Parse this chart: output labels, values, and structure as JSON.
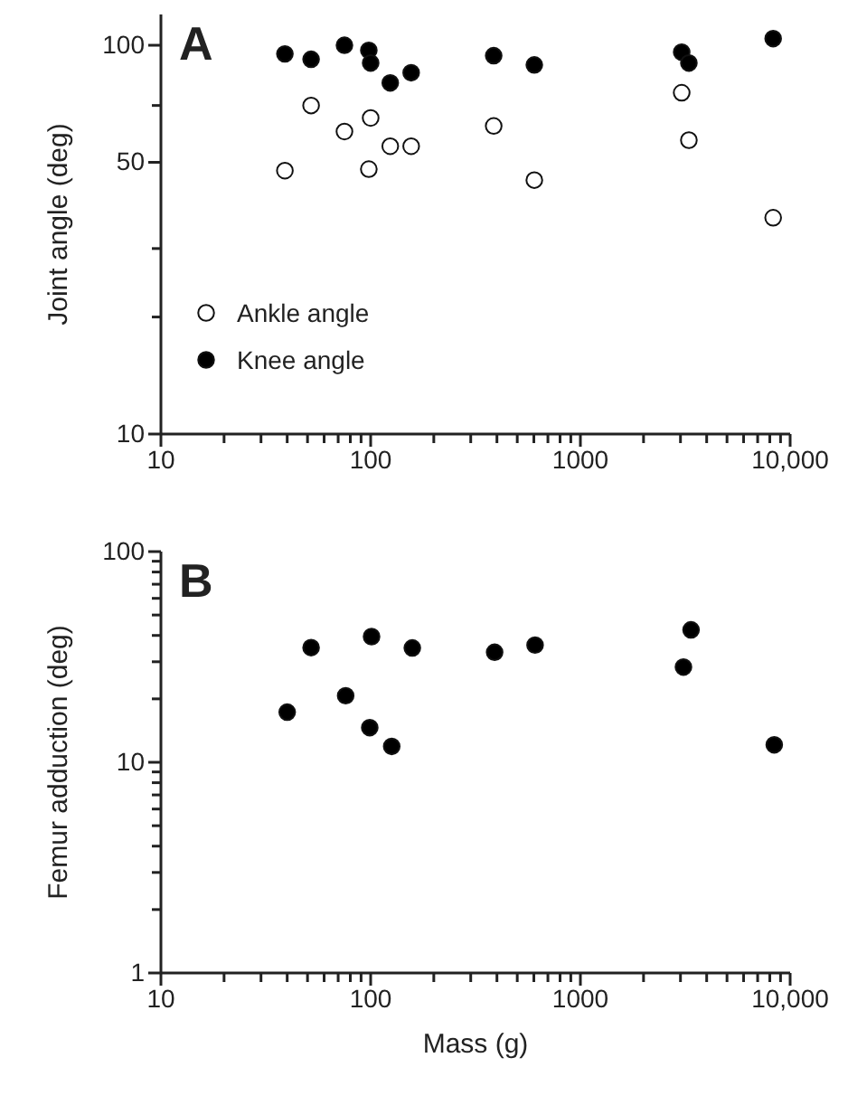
{
  "chart_data": [
    {
      "type": "scatter",
      "title": "A",
      "ylabel": "Joint angle (deg)",
      "log": "xy",
      "marker": "circle",
      "legend": "left",
      "grid": false,
      "xlim": [
        10,
        10000
      ],
      "xticks": [
        10,
        {
          "value": 20,
          "label": null
        },
        {
          "value": 30,
          "label": null
        },
        {
          "value": 40,
          "label": null
        },
        {
          "value": 50,
          "label": null
        },
        {
          "value": 60,
          "label": null
        },
        {
          "value": 70,
          "label": null
        },
        {
          "value": 80,
          "label": null
        },
        {
          "value": 90,
          "label": null
        },
        100,
        {
          "value": 200,
          "label": null
        },
        {
          "value": 300,
          "label": null
        },
        {
          "value": 400,
          "label": null
        },
        {
          "value": 500,
          "label": null
        },
        {
          "value": 600,
          "label": null
        },
        {
          "value": 700,
          "label": null
        },
        {
          "value": 800,
          "label": null
        },
        {
          "value": 900,
          "label": null
        },
        1000,
        {
          "value": 2000,
          "label": null
        },
        {
          "value": 3000,
          "label": null
        },
        {
          "value": 4000,
          "label": null
        },
        {
          "value": 5000,
          "label": null
        },
        {
          "value": 6000,
          "label": null
        },
        {
          "value": 7000,
          "label": null
        },
        {
          "value": 8000,
          "label": null
        },
        {
          "value": 9000,
          "label": null
        },
        {
          "value": 10000,
          "label": "10,000"
        }
      ],
      "ylim": [
        10,
        120
      ],
      "yticks": [
        10,
        {
          "value": 20,
          "label": null
        },
        {
          "value": 30,
          "label": null
        },
        50,
        {
          "value": 70,
          "label": null
        },
        100
      ],
      "series": [
        {
          "name": "Ankle angle",
          "color": "#ffffff",
          "x": [
            39,
            52,
            75,
            100,
            98,
            124,
            156,
            386,
            603,
            3040,
            3290,
            8300
          ],
          "values": [
            47.6,
            70,
            60,
            65,
            48,
            55,
            55,
            62,
            45,
            75.5,
            57,
            36
          ]
        },
        {
          "name": "Knee angle",
          "color": "#000000",
          "x": [
            39,
            52,
            75,
            98,
            100,
            124,
            156,
            386,
            603,
            3040,
            3290,
            8300
          ],
          "values": [
            95,
            92,
            100,
            97,
            90,
            80,
            85,
            94,
            89,
            96,
            90,
            104
          ]
        }
      ]
    },
    {
      "type": "scatter",
      "title": "B",
      "xlabel": "Mass (g)",
      "ylabel": "Femur adduction (deg)",
      "log": "xy",
      "marker": "circle",
      "legend": false,
      "grid": false,
      "xlim": [
        10,
        10000
      ],
      "xticks": [
        10,
        {
          "value": 20,
          "label": null
        },
        {
          "value": 30,
          "label": null
        },
        {
          "value": 40,
          "label": null
        },
        {
          "value": 50,
          "label": null
        },
        {
          "value": 60,
          "label": null
        },
        {
          "value": 70,
          "label": null
        },
        {
          "value": 80,
          "label": null
        },
        {
          "value": 90,
          "label": null
        },
        100,
        {
          "value": 200,
          "label": null
        },
        {
          "value": 300,
          "label": null
        },
        {
          "value": 400,
          "label": null
        },
        {
          "value": 500,
          "label": null
        },
        {
          "value": 600,
          "label": null
        },
        {
          "value": 700,
          "label": null
        },
        {
          "value": 800,
          "label": null
        },
        {
          "value": 900,
          "label": null
        },
        1000,
        {
          "value": 2000,
          "label": null
        },
        {
          "value": 3000,
          "label": null
        },
        {
          "value": 4000,
          "label": null
        },
        {
          "value": 5000,
          "label": null
        },
        {
          "value": 6000,
          "label": null
        },
        {
          "value": 7000,
          "label": null
        },
        {
          "value": 8000,
          "label": null
        },
        {
          "value": 9000,
          "label": null
        },
        {
          "value": 10000,
          "label": "10,000"
        }
      ],
      "ylim": [
        1,
        100
      ],
      "yticks": [
        1,
        {
          "value": 2,
          "label": null
        },
        {
          "value": 3,
          "label": null
        },
        {
          "value": 4,
          "label": null
        },
        {
          "value": 5,
          "label": null
        },
        {
          "value": 6,
          "label": null
        },
        {
          "value": 7,
          "label": null
        },
        {
          "value": 8,
          "label": null
        },
        {
          "value": 9,
          "label": null
        },
        10,
        {
          "value": 20,
          "label": null
        },
        {
          "value": 30,
          "label": null
        },
        {
          "value": 40,
          "label": null
        },
        {
          "value": 50,
          "label": null
        },
        {
          "value": 60,
          "label": null
        },
        {
          "value": 70,
          "label": null
        },
        {
          "value": 80,
          "label": null
        },
        {
          "value": 90,
          "label": null
        },
        100
      ],
      "series": [
        {
          "color": "#000000",
          "x": [
            40,
            52,
            76,
            101,
            99,
            126,
            158,
            390,
            608,
            3100,
            3370,
            8400
          ],
          "values": [
            17.3,
            35,
            20.7,
            39.5,
            14.6,
            11.9,
            34.9,
            33.3,
            36,
            28.3,
            42.5,
            12.1
          ]
        }
      ]
    }
  ]
}
